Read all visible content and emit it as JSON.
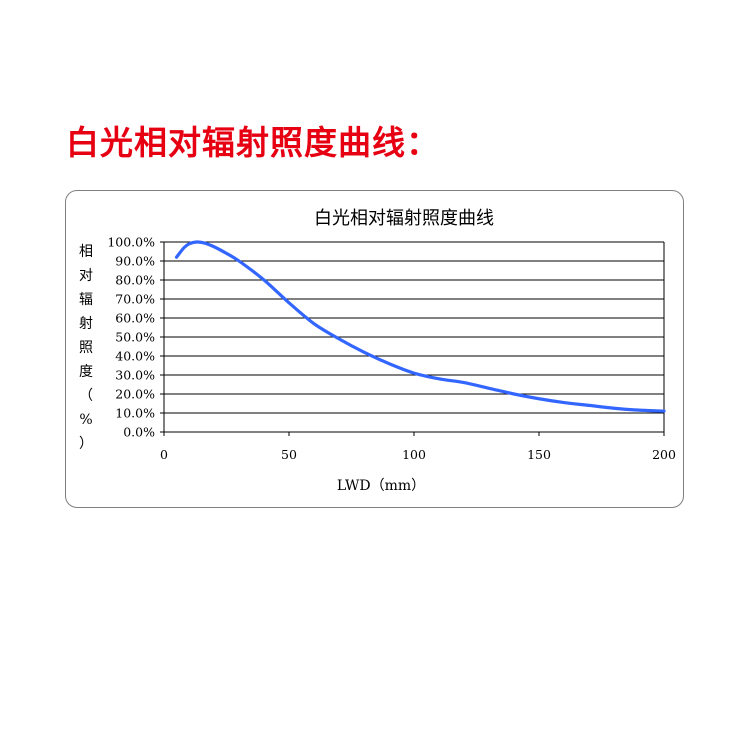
{
  "heading": "白光相对辐射照度曲线：",
  "colors": {
    "heading": "#e60012",
    "series": "#3366ff",
    "grid": "#000000"
  },
  "chart_data": {
    "type": "line",
    "title": "白光相对辐射照度曲线",
    "xlabel": "LWD（mm）",
    "ylabel": "相对辐射照度（%）",
    "xlim": [
      0,
      200
    ],
    "ylim": [
      0,
      100
    ],
    "x_ticks": [
      "0",
      "50",
      "100",
      "150",
      "200"
    ],
    "y_ticks": [
      "0.0%",
      "10.0%",
      "20.0%",
      "30.0%",
      "40.0%",
      "50.0%",
      "60.0%",
      "70.0%",
      "80.0%",
      "90.0%",
      "100.0%"
    ],
    "grid": true,
    "legend": "none",
    "series": [
      {
        "x": [
          5,
          8,
          10,
          13,
          16,
          20,
          25,
          30,
          40,
          50,
          60,
          70,
          80,
          90,
          100,
          110,
          120,
          130,
          140,
          150,
          160,
          170,
          180,
          190,
          200
        ],
        "y": [
          92,
          97,
          99,
          100,
          99.5,
          97.5,
          94,
          90,
          80,
          68,
          57,
          49,
          42,
          36,
          31,
          28,
          26,
          23,
          20,
          17.5,
          15.5,
          14,
          12.5,
          11.5,
          11
        ]
      }
    ]
  }
}
